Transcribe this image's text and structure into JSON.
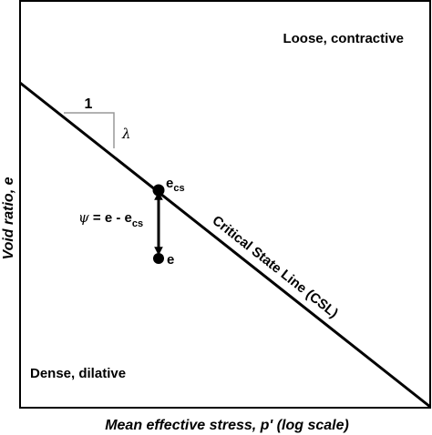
{
  "diagram": {
    "region_top_label": "Loose, contractive",
    "region_bottom_label": "Dense, dilative",
    "slope_run_label": "1",
    "slope_symbol": "λ",
    "csl_label": "Critical State Line (CSL)",
    "point_cs_label": "e",
    "point_cs_subscript": "cs",
    "point_e_label": "e",
    "psi_symbol": "ψ",
    "psi_equation_text": " = e - e",
    "psi_equation_subscript": "cs",
    "x_axis_label": "Mean effective stress, p' (log scale)",
    "y_axis_label": "Void ratio, e"
  }
}
